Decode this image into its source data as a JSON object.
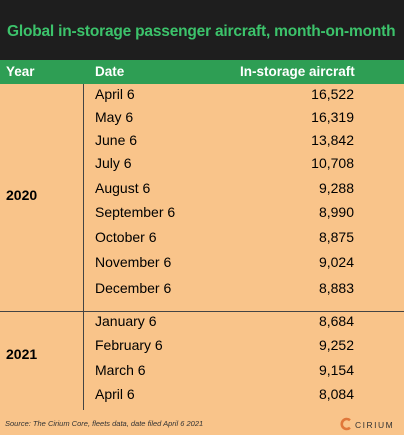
{
  "chart_data": {
    "type": "table",
    "title": "Global in-storage passenger aircraft, month-on-month",
    "columns": [
      "Year",
      "Date",
      "In-storage aircraft"
    ],
    "groups": [
      {
        "year": "2020",
        "rows": [
          {
            "date": "April 6",
            "value": "16,522"
          },
          {
            "date": "May 6",
            "value": "16,319"
          },
          {
            "date": "June 6",
            "value": "13,842"
          },
          {
            "date": "July 6",
            "value": "10,708"
          },
          {
            "date": "August 6",
            "value": "9,288"
          },
          {
            "date": "September 6",
            "value": "8,990"
          },
          {
            "date": "October 6",
            "value": "8,875"
          },
          {
            "date": "November 6",
            "value": "9,024"
          },
          {
            "date": "December 6",
            "value": "8,883"
          }
        ]
      },
      {
        "year": "2021",
        "rows": [
          {
            "date": "January 6",
            "value": "8,684"
          },
          {
            "date": "February 6",
            "value": "9,252"
          },
          {
            "date": "March 6",
            "value": "9,154"
          },
          {
            "date": "April 6",
            "value": "8,084"
          }
        ]
      }
    ],
    "source": "Source: The Cirium Core, fleets data, date filed April 6 2021"
  },
  "logo": {
    "text": "CIRIUM",
    "color": "#e0773a"
  }
}
